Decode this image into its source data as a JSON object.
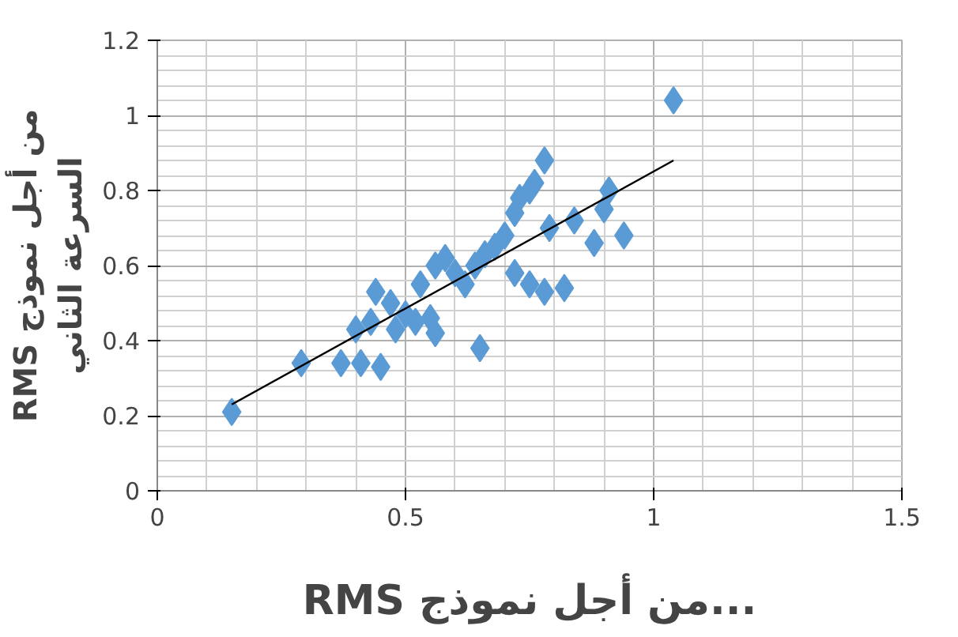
{
  "chart_data": {
    "type": "scatter",
    "xlabel": "RMS من أجل نموذج...",
    "ylabel": "RMS من أجل نموذج\nالسرعة الثاني",
    "xlim": [
      0,
      1.5
    ],
    "xticks": [
      0,
      0.5,
      1,
      1.5
    ],
    "ylim": [
      0,
      1.2
    ],
    "yticks": [
      0,
      0.2,
      0.4,
      0.6,
      0.8,
      1,
      1.2
    ],
    "grid": true,
    "series": [
      {
        "marker": "diamond",
        "color": "#5b9bd5",
        "x": [
          0.15,
          0.29,
          0.37,
          0.41,
          0.45,
          0.4,
          0.43,
          0.44,
          0.47,
          0.5,
          0.48,
          0.52,
          0.55,
          0.56,
          0.53,
          0.56,
          0.58,
          0.6,
          0.62,
          0.64,
          0.65,
          0.66,
          0.68,
          0.7,
          0.72,
          0.73,
          0.75,
          0.78,
          0.76,
          0.72,
          0.75,
          0.78,
          0.79,
          0.82,
          0.84,
          0.88,
          0.9,
          0.91,
          0.94,
          1.04
        ],
        "values": [
          0.21,
          0.34,
          0.34,
          0.34,
          0.33,
          0.43,
          0.45,
          0.53,
          0.5,
          0.47,
          0.43,
          0.45,
          0.46,
          0.42,
          0.55,
          0.6,
          0.62,
          0.58,
          0.55,
          0.6,
          0.38,
          0.63,
          0.65,
          0.68,
          0.74,
          0.78,
          0.8,
          0.88,
          0.82,
          0.58,
          0.55,
          0.53,
          0.7,
          0.54,
          0.72,
          0.66,
          0.75,
          0.8,
          0.68,
          1.04
        ]
      },
      {
        "type": "line",
        "color": "#000000",
        "x": [
          0.15,
          1.04
        ],
        "values": [
          0.23,
          0.88
        ]
      }
    ]
  }
}
